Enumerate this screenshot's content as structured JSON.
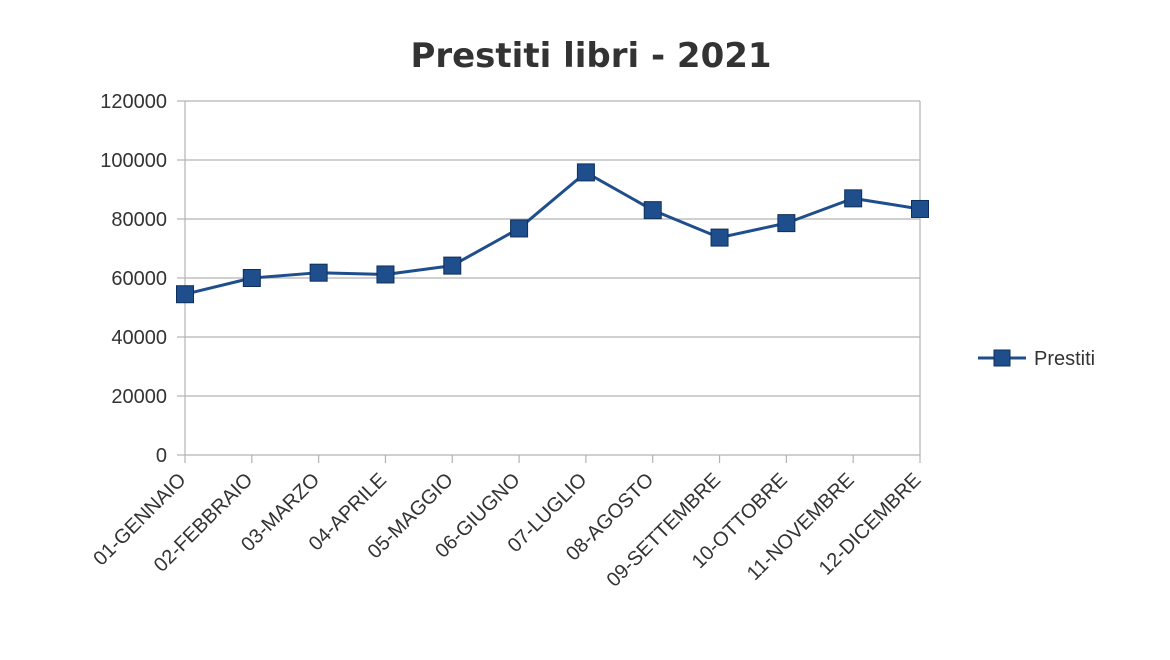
{
  "chart_data": {
    "type": "line",
    "title": "Prestiti libri - 2021",
    "xlabel": "",
    "ylabel": "",
    "categories": [
      "01-GENNAIO",
      "02-FEBBRAIO",
      "03-MARZO",
      "04-APRILE",
      "05-MAGGIO",
      "06-GIUGNO",
      "07-LUGLIO",
      "08-AGOSTO",
      "09-SETTEMBRE",
      "10-OTTOBRE",
      "11-NOVEMBRE",
      "12-DICEMBRE"
    ],
    "series": [
      {
        "name": "Prestiti",
        "values": [
          54500,
          60000,
          61800,
          61200,
          64200,
          76800,
          95800,
          83000,
          73700,
          78600,
          87000,
          83400
        ],
        "color": "#1f4e8c",
        "marker": "square"
      }
    ],
    "ylim": [
      0,
      120000
    ],
    "yticks": [
      0,
      20000,
      40000,
      60000,
      80000,
      100000,
      120000
    ],
    "grid": true,
    "legend": "right"
  },
  "colors": {
    "series": "#1f4e8c",
    "marker_fill": "#1f4e8c",
    "marker_stroke": "#0e2f5c",
    "grid": "#b3b3b3",
    "axis": "#b3b3b3",
    "text": "#333333"
  }
}
